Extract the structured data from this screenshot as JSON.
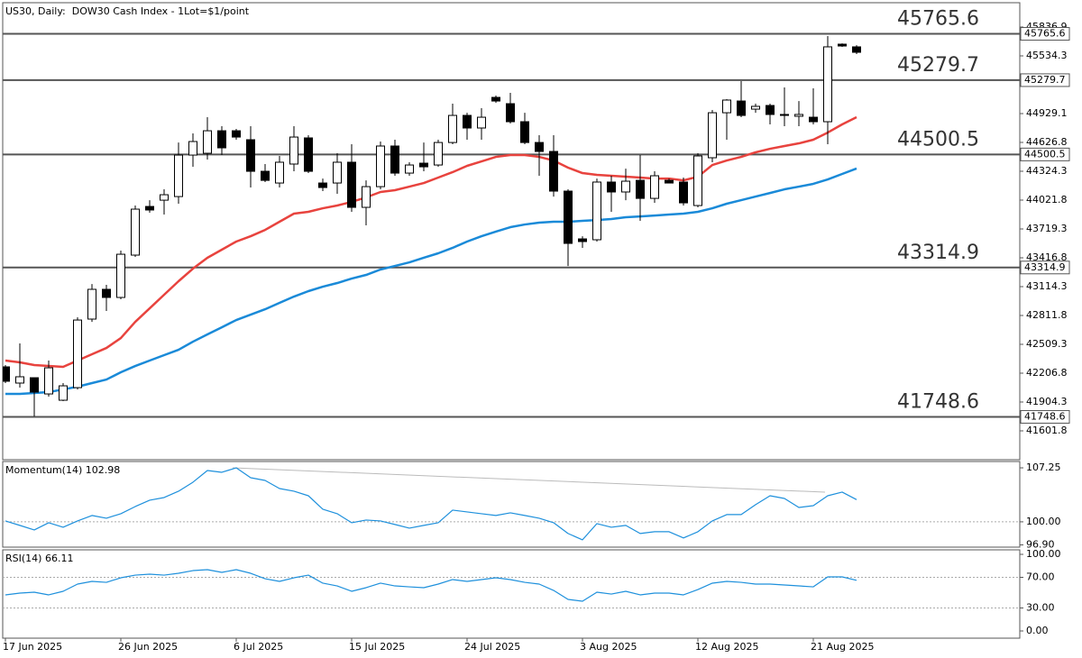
{
  "chart_data": [
    {
      "type": "candlestick",
      "title": "US30, Daily:  DOW30 Cash Index - 1Lot=$1/point",
      "categories": [
        "17 Jun 2025",
        null,
        null,
        null,
        null,
        null,
        null,
        null,
        "26 Jun 2025",
        null,
        null,
        null,
        null,
        null,
        null,
        null,
        "6 Jul 2025",
        null,
        null,
        null,
        null,
        null,
        null,
        null,
        "15 Jul 2025",
        null,
        null,
        null,
        null,
        null,
        null,
        null,
        "24 Jul 2025",
        null,
        null,
        null,
        null,
        null,
        null,
        null,
        "3 Aug 2025",
        null,
        null,
        null,
        null,
        null,
        null,
        null,
        "12 Aug 2025",
        null,
        null,
        null,
        null,
        null,
        null,
        null,
        "21 Aug 2025",
        null,
        null,
        null
      ],
      "open": [
        42273,
        42103,
        42159,
        41989,
        41923,
        42055,
        42774,
        43086,
        43001,
        43445,
        43955,
        44021,
        44059,
        44494,
        44513,
        44749,
        44749,
        44655,
        44324,
        44201,
        44400,
        44674,
        44201,
        44201,
        44419,
        43946,
        44163,
        44589,
        44305,
        44409,
        44390,
        44626,
        44910,
        44778,
        45099,
        45033,
        44844,
        44626,
        44532,
        44116,
        43615,
        43606,
        44211,
        44107,
        44229,
        44040,
        44229,
        44211,
        43965,
        44466,
        44938,
        45061,
        44976,
        45014,
        44920,
        44901,
        44891,
        44844,
        45657,
        45629
      ],
      "high": [
        42292,
        42519,
        42159,
        42339,
        42103,
        42793,
        43142,
        43133,
        43492,
        43965,
        44021,
        44135,
        44626,
        44721,
        44891,
        44797,
        44768,
        44797,
        44400,
        44485,
        44797,
        44702,
        44248,
        44513,
        44608,
        44229,
        44636,
        44655,
        44419,
        44626,
        44655,
        45033,
        44938,
        44986,
        45118,
        45147,
        44938,
        44702,
        44702,
        44135,
        43643,
        44248,
        44277,
        44352,
        44494,
        44324,
        44248,
        44258,
        44513,
        44967,
        45080,
        45270,
        45033,
        45033,
        45203,
        45061,
        45194,
        45742,
        45666,
        45647
      ],
      "low": [
        42103,
        42055,
        41753,
        41961,
        41914,
        42036,
        42745,
        42859,
        42982,
        43426,
        43889,
        43870,
        43984,
        44371,
        44447,
        44494,
        44655,
        44154,
        44211,
        44154,
        44324,
        44305,
        44116,
        44088,
        43899,
        43757,
        44135,
        44277,
        44277,
        44324,
        44371,
        44608,
        44655,
        44655,
        45042,
        44825,
        44608,
        44277,
        44059,
        43331,
        43521,
        43587,
        43899,
        44021,
        43804,
        43993,
        44201,
        43965,
        43946,
        44419,
        44655,
        44891,
        44938,
        44816,
        44797,
        44797,
        44816,
        44608,
        45629,
        45553
      ],
      "close": [
        42122,
        42169,
        42008,
        42263,
        42074,
        42764,
        43086,
        43001,
        43454,
        43927,
        43918,
        44078,
        44494,
        44636,
        44749,
        44570,
        44683,
        44324,
        44229,
        44419,
        44683,
        44324,
        44154,
        44419,
        43946,
        44163,
        44589,
        44305,
        44390,
        44371,
        44626,
        44910,
        44778,
        44891,
        45061,
        44844,
        44626,
        44532,
        44116,
        43568,
        43587,
        44211,
        44107,
        44220,
        44040,
        44277,
        44201,
        43993,
        44485,
        44938,
        45071,
        44910,
        45005,
        44920,
        44910,
        44920,
        44844,
        45629,
        45638,
        45572
      ],
      "lines": [
        {
          "color": "#e8433e",
          "values": [
            42339,
            42320,
            42292,
            42282,
            42273,
            42339,
            42405,
            42471,
            42575,
            42745,
            42887,
            43029,
            43171,
            43303,
            43417,
            43502,
            43587,
            43643,
            43709,
            43795,
            43880,
            43899,
            43936,
            43965,
            44003,
            44050,
            44107,
            44126,
            44163,
            44201,
            44258,
            44315,
            44381,
            44428,
            44475,
            44494,
            44494,
            44475,
            44437,
            44362,
            44305,
            44286,
            44277,
            44267,
            44258,
            44248,
            44248,
            44229,
            44267,
            44390,
            44437,
            44475,
            44523,
            44560,
            44589,
            44617,
            44655,
            44730,
            44816,
            44891
          ]
        },
        {
          "color": "#1a8ad8",
          "values": [
            41989,
            41989,
            41999,
            42008,
            42036,
            42065,
            42103,
            42140,
            42216,
            42282,
            42339,
            42396,
            42452,
            42537,
            42613,
            42688,
            42764,
            42821,
            42877,
            42944,
            43010,
            43067,
            43114,
            43152,
            43199,
            43237,
            43294,
            43331,
            43369,
            43417,
            43464,
            43521,
            43587,
            43643,
            43691,
            43738,
            43766,
            43785,
            43795,
            43795,
            43804,
            43813,
            43823,
            43842,
            43851,
            43860,
            43870,
            43880,
            43899,
            43936,
            43984,
            44021,
            44059,
            44096,
            44135,
            44163,
            44192,
            44239,
            44296,
            44353
          ]
        }
      ],
      "levels": [
        45765.6,
        45279.7,
        44500.5,
        43314.9,
        41748.6
      ],
      "ylim": [
        41299.3,
        46092.0
      ],
      "yticks": [
        45836.9,
        45534.3,
        44929.1,
        44626.8,
        44324.3,
        44021.8,
        43719.3,
        43416.8,
        43114.3,
        42811.8,
        42509.3,
        42206.8,
        41904.3,
        41601.8
      ]
    },
    {
      "type": "line",
      "title": "Momentum(14) 102.98",
      "color": "#1e90dc",
      "values": [
        100.12,
        99.52,
        98.91,
        99.88,
        99.27,
        100.12,
        100.85,
        100.48,
        101.09,
        102.05,
        102.9,
        103.26,
        104.11,
        105.32,
        106.89,
        106.65,
        107.25,
        105.92,
        105.56,
        104.47,
        104.11,
        103.5,
        101.69,
        101.09,
        99.88,
        100.24,
        100.12,
        99.64,
        99.15,
        99.52,
        99.88,
        101.57,
        101.33,
        101.09,
        100.85,
        101.21,
        100.85,
        100.48,
        99.88,
        98.43,
        97.58,
        99.76,
        99.27,
        99.52,
        98.43,
        98.67,
        98.67,
        97.83,
        98.67,
        100.12,
        100.97,
        100.97,
        102.3,
        103.5,
        103.14,
        101.93,
        102.17,
        103.5,
        103.99,
        102.98
      ],
      "levels": [
        100
      ],
      "ylim": [
        96.6,
        108.1
      ],
      "yticks": [
        107.25,
        {
          "value": 100,
          "label": "100.00"
        },
        {
          "value": 96.9,
          "label": "96.90"
        }
      ]
    },
    {
      "type": "line",
      "title": "RSI(14) 66.11",
      "color": "#1e90dc",
      "values": [
        47.1,
        49.4,
        50.6,
        47.1,
        51.8,
        61.2,
        64.7,
        63.5,
        69.4,
        72.9,
        74.1,
        72.9,
        75.3,
        78.8,
        80.0,
        76.5,
        80.0,
        75.3,
        68.2,
        64.7,
        69.4,
        72.9,
        62.4,
        58.8,
        51.8,
        56.5,
        62.4,
        58.8,
        57.6,
        56.5,
        61.2,
        67.1,
        64.7,
        67.1,
        69.4,
        67.1,
        63.5,
        61.2,
        52.9,
        41.2,
        38.8,
        50.6,
        48.2,
        51.8,
        47.1,
        49.4,
        49.4,
        47.1,
        54.1,
        62.4,
        64.7,
        63.5,
        61.2,
        61.2,
        60.0,
        58.8,
        57.6,
        70.6,
        70.6,
        66.11
      ],
      "levels": [
        70,
        30
      ],
      "ylim": [
        -9.4,
        105.9
      ],
      "yticks": [
        {
          "value": 100,
          "label": "100.00"
        },
        {
          "value": 70,
          "label": "70.00"
        },
        {
          "value": 30,
          "label": "30.00"
        },
        {
          "value": 0,
          "label": "0.00"
        }
      ]
    }
  ]
}
